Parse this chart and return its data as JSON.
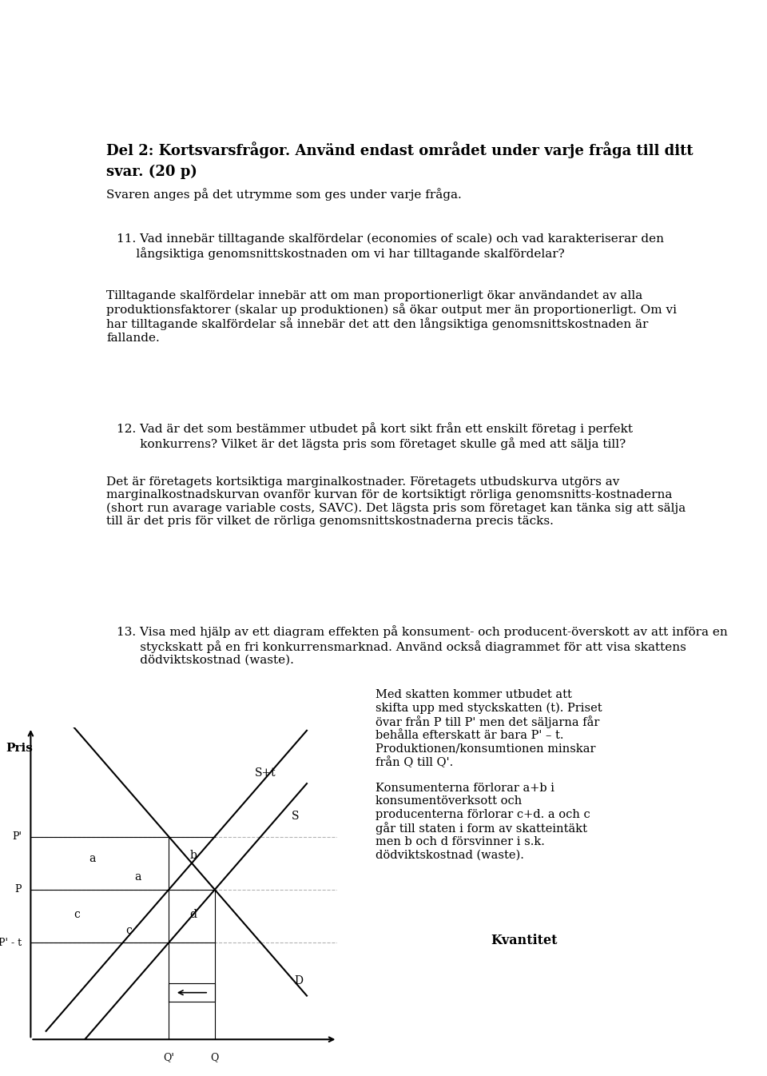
{
  "bg_color": "#ffffff",
  "text_color": "#000000",
  "title_bold": "Del 2: Kortsvarsfrågor. Använd endast området under varje fråga till ditt svar. (20 p)",
  "subtitle": "Svaren anges på det utrymme som ges under varje fråga.",
  "q11_text": "11. Vad innebär tilltagande skalfördelar (economies of scale) och vad karakteriserar den\n     långsiktiga genomsnittskostnaden om vi har tilltagande skalfördelar?",
  "q11_answer": "Tilltagande skalfördelar innebär att om man proportionerligt ökar användandet av alla\nproduktionsfaktorer (skalar up produktionen) så ökar output mer än proportionerligt. Om vi\nhar tilltagande skalfördelar så innebär det att den långsiktiga genomsnittskostnaden är\nfallande.",
  "q12_text": "12. Vad är det som bestämmer utbudet på kort sikt från ett enskilt företag i perfekt\n      konkurrens? Vilket är det lägsta pris som företaget skulle gå med att sälja till?",
  "q12_answer": "Det är företagets kortsiktiga marginalkostnader. Företagets utbudskurva utgörs av\nmarginalkostnadskurvan ovanför kurvan för de kortsiktigt rörliga genomsnitts-kostnaderna\n(short run avarage variable costs, SAVC). Det lägsta pris som företaget kan tänka sig att sälja\ntill är det pris för vilket de rörliga genomsnittskostnaderna precis täcks.",
  "q13_text": "13. Visa med hjälp av ett diagram effekten på konsument- och producent-överskott av att införa en\n      styckskatt på en fri konkurrensmarknad. Använd också diagrammet för att visa skattens\n      dödviktskostnad (waste).",
  "q13_note": "Med skatten kommer utbudet att\nskifta upp med styckskatten (t). Priset\növar från P till P' men det säljarna får\nbehålla efterskatt är bara P' – t.\nProduktionen/konsumtionen minskar\nfrån Q till Q'.\n\nKonsumenterna förlorar a+b i\nkonsumentöverksott och\nproducenterna förlorar c+d. a och c\ngår till staten i form av skatteintäkt\nmen b och d försvinner i s.k.\ndödviktskostnad (waste).",
  "ylabel_diagram": "Pris",
  "xlabel_diagram": "Kvantitet",
  "label_St": "S+t",
  "label_S": "S",
  "label_D": "D",
  "label_Pprime": "P'",
  "label_P": "P",
  "label_Ppt": "P' - t",
  "label_Qprime": "Q'",
  "label_Q": "Q",
  "label_a1": "a",
  "label_a2": "a",
  "label_b": "b",
  "label_c1": "c",
  "label_c2": "c",
  "label_d": "d"
}
